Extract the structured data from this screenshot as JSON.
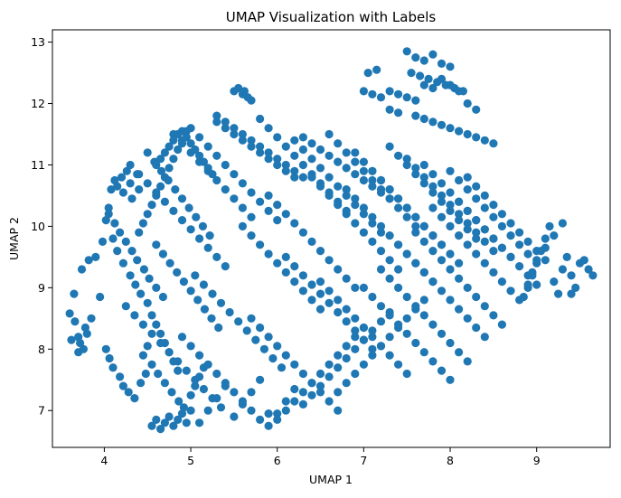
{
  "chart_data": {
    "type": "scatter",
    "title": "UMAP Visualization with Labels",
    "xlabel": "UMAP 1",
    "ylabel": "UMAP 2",
    "xlim": [
      3.4,
      9.85
    ],
    "ylim": [
      6.4,
      13.2
    ],
    "xticks": [
      4,
      5,
      6,
      7,
      8,
      9
    ],
    "yticks": [
      7,
      8,
      9,
      10,
      11,
      12,
      13
    ],
    "grid": false,
    "legend": "none",
    "series": [
      {
        "color": "#1f77b4",
        "x": [
          3.6,
          3.62,
          3.66,
          3.7,
          3.72,
          3.76,
          3.78,
          3.8,
          3.7,
          3.65,
          3.74,
          3.82,
          3.9,
          3.85,
          3.95,
          3.98,
          4.02,
          4.05,
          4.08,
          4.12,
          4.15,
          4.2,
          4.22,
          4.26,
          4.3,
          4.32,
          4.38,
          4.4,
          4.02,
          4.06,
          4.1,
          4.18,
          4.22,
          4.28,
          4.35,
          4.42,
          4.48,
          4.1,
          4.15,
          4.22,
          4.3,
          4.36,
          4.42,
          4.5,
          4.55,
          4.6,
          4.65,
          4.7,
          4.75,
          4.8,
          4.85,
          4.55,
          4.6,
          4.65,
          4.7,
          4.75,
          4.8,
          4.85,
          4.9,
          4.95,
          5.0,
          4.45,
          4.5,
          4.55,
          4.62,
          4.7,
          4.78,
          4.86,
          4.92,
          5.0,
          5.05,
          5.1,
          5.15,
          4.4,
          4.45,
          4.5,
          4.55,
          4.6,
          4.65,
          4.7,
          4.75,
          4.8,
          4.85,
          4.9,
          4.95,
          4.5,
          4.58,
          4.66,
          4.74,
          4.82,
          4.9,
          4.98,
          5.06,
          5.14,
          5.22,
          4.6,
          4.68,
          4.76,
          4.84,
          4.92,
          5.0,
          5.08,
          5.16,
          5.24,
          5.32,
          4.05,
          4.12,
          4.18,
          4.25,
          4.32,
          4.38,
          4.46,
          4.52,
          4.6,
          4.68,
          4.25,
          4.35,
          4.45,
          4.55,
          4.65,
          4.75,
          4.85,
          4.95,
          5.05,
          5.15,
          5.25,
          5.35,
          4.3,
          4.4,
          4.5,
          4.6,
          4.7,
          4.8,
          4.9,
          5.0,
          5.1,
          5.2,
          5.3,
          5.4,
          4.8,
          4.9,
          5.0,
          5.1,
          5.2,
          5.3,
          5.4,
          5.5,
          5.6,
          5.7,
          4.9,
          5.0,
          5.1,
          5.2,
          5.3,
          5.4,
          5.5,
          5.6,
          5.7,
          5.8,
          5.9,
          5.0,
          5.1,
          5.2,
          5.3,
          5.4,
          5.5,
          5.6,
          5.7,
          5.8,
          5.9,
          6.0,
          5.05,
          5.15,
          5.25,
          5.35,
          5.45,
          5.55,
          5.65,
          5.75,
          5.85,
          5.95,
          6.05,
          5.1,
          5.2,
          5.3,
          5.4,
          5.5,
          5.6,
          5.7,
          5.8,
          5.9,
          6.0,
          6.1,
          6.2,
          5.5,
          5.55,
          5.6,
          5.62,
          5.66,
          5.7,
          5.3,
          5.4,
          5.5,
          5.6,
          5.7,
          5.8,
          5.9,
          6.0,
          6.1,
          6.2,
          6.3,
          5.6,
          5.7,
          5.8,
          5.9,
          6.0,
          6.1,
          6.2,
          6.3,
          6.4,
          6.5,
          5.7,
          5.8,
          5.9,
          6.0,
          6.1,
          6.2,
          6.3,
          6.4,
          6.5,
          6.6,
          6.7,
          5.8,
          5.9,
          6.0,
          6.1,
          6.2,
          6.3,
          6.4,
          6.5,
          6.6,
          6.7,
          6.8,
          5.9,
          6.0,
          6.1,
          6.2,
          6.3,
          6.4,
          6.5,
          6.6,
          6.7,
          6.8,
          6.9,
          6.0,
          6.1,
          6.2,
          6.3,
          6.4,
          6.5,
          6.6,
          6.7,
          6.8,
          6.9,
          7.0,
          6.1,
          6.2,
          6.3,
          6.4,
          6.5,
          6.6,
          6.7,
          6.8,
          6.9,
          7.0,
          7.1,
          6.2,
          6.3,
          6.4,
          6.5,
          6.6,
          6.7,
          6.8,
          6.9,
          7.0,
          7.1,
          7.2,
          6.3,
          6.4,
          6.5,
          6.6,
          6.7,
          6.8,
          6.9,
          7.0,
          7.1,
          7.2,
          7.3,
          6.4,
          6.5,
          6.6,
          6.7,
          6.8,
          6.9,
          7.0,
          7.1,
          7.2,
          7.3,
          7.4,
          6.5,
          6.6,
          6.7,
          6.8,
          6.9,
          7.0,
          7.1,
          7.2,
          7.3,
          7.4,
          7.5,
          6.6,
          6.7,
          6.8,
          6.9,
          7.0,
          7.1,
          7.2,
          7.3,
          7.4,
          7.5,
          7.6,
          6.7,
          6.8,
          6.9,
          7.0,
          7.1,
          7.2,
          7.3,
          7.4,
          7.5,
          7.6,
          7.7,
          6.8,
          6.9,
          7.0,
          7.1,
          7.2,
          7.3,
          7.4,
          7.5,
          7.6,
          7.7,
          7.8,
          6.9,
          7.0,
          7.1,
          7.2,
          7.3,
          7.4,
          7.5,
          7.6,
          7.7,
          7.8,
          7.9,
          7.0,
          7.1,
          7.2,
          7.3,
          7.4,
          7.5,
          7.6,
          7.7,
          7.8,
          7.9,
          8.0,
          7.1,
          7.2,
          7.3,
          7.4,
          7.5,
          7.6,
          7.7,
          7.8,
          7.9,
          8.0,
          8.1,
          7.2,
          7.3,
          7.4,
          7.5,
          7.6,
          7.7,
          7.8,
          7.9,
          8.0,
          8.1,
          8.2,
          7.3,
          7.4,
          7.5,
          7.6,
          7.7,
          7.8,
          7.9,
          8.0,
          8.1,
          8.2,
          8.3,
          7.4,
          7.5,
          7.6,
          7.7,
          7.8,
          7.9,
          8.0,
          8.1,
          8.2,
          8.3,
          8.4,
          7.5,
          7.6,
          7.7,
          7.8,
          7.9,
          8.0,
          8.1,
          8.2,
          8.3,
          8.4,
          8.5,
          7.6,
          7.7,
          7.8,
          7.9,
          8.0,
          8.1,
          8.2,
          8.3,
          8.4,
          8.5,
          8.6,
          7.7,
          7.8,
          7.9,
          8.0,
          8.1,
          8.2,
          8.3,
          8.4,
          8.5,
          8.6,
          8.7,
          7.8,
          7.9,
          8.0,
          8.1,
          8.2,
          8.3,
          8.4,
          8.5,
          8.6,
          8.7,
          8.8,
          8.0,
          8.1,
          8.2,
          8.3,
          8.4,
          8.5,
          8.6,
          8.7,
          8.8,
          8.9,
          8.1,
          8.2,
          8.3,
          8.4,
          8.5,
          8.6,
          8.7,
          8.8,
          8.9,
          9.0,
          8.2,
          8.3,
          8.4,
          8.5,
          8.6,
          8.7,
          8.8,
          8.9,
          9.0,
          9.1,
          7.0,
          7.05,
          7.1,
          7.15,
          7.2,
          7.3,
          7.4,
          7.5,
          7.6,
          7.7,
          7.8,
          7.9,
          8.0,
          8.1,
          8.2,
          8.3,
          7.5,
          7.6,
          7.7,
          7.8,
          7.9,
          8.0,
          7.55,
          7.65,
          7.75,
          7.85,
          7.95,
          8.05,
          8.15,
          7.3,
          7.4,
          7.6,
          7.7,
          7.8,
          7.9,
          8.0,
          8.1,
          8.2,
          8.3,
          8.4,
          8.5,
          8.9,
          8.95,
          9.0,
          9.05,
          9.1,
          9.15,
          9.2,
          9.25,
          9.3,
          9.35,
          9.4,
          9.45,
          9.5,
          9.55,
          9.6,
          9.65,
          8.85,
          8.9,
          8.95,
          9.0,
          9.1,
          9.2,
          9.3,
          9.4,
          4.6,
          4.65,
          4.7,
          4.75,
          4.8,
          4.85,
          4.9,
          4.95,
          5.0,
          5.05,
          5.1,
          5.15,
          5.2,
          5.25,
          5.3,
          5.4,
          5.5,
          5.6,
          5.7,
          5.8,
          5.9,
          6.0,
          6.1,
          6.2,
          6.3,
          6.4,
          6.5,
          6.6,
          6.7,
          6.8,
          6.9,
          7.0,
          7.1,
          7.2,
          7.3
        ],
        "y": [
          8.58,
          8.15,
          8.45,
          8.2,
          8.1,
          8.0,
          8.35,
          8.25,
          7.95,
          8.9,
          9.3,
          9.45,
          9.5,
          8.5,
          8.85,
          9.75,
          10.1,
          10.3,
          10.6,
          10.75,
          10.65,
          10.8,
          10.55,
          10.9,
          10.7,
          10.45,
          10.85,
          10.6,
          8.0,
          7.85,
          7.7,
          7.55,
          7.4,
          7.3,
          7.2,
          7.45,
          7.6,
          9.8,
          9.6,
          9.4,
          9.2,
          9.05,
          8.9,
          8.75,
          8.55,
          8.4,
          8.25,
          8.1,
          7.95,
          7.8,
          7.65,
          6.75,
          6.85,
          6.7,
          6.8,
          6.9,
          6.75,
          6.85,
          6.95,
          6.8,
          7.0,
          7.9,
          8.05,
          7.75,
          7.6,
          7.45,
          7.3,
          7.15,
          7.05,
          7.25,
          7.4,
          7.55,
          7.7,
          9.9,
          10.05,
          10.2,
          10.35,
          10.5,
          10.65,
          10.8,
          10.95,
          11.1,
          11.25,
          11.4,
          11.55,
          11.2,
          11.05,
          10.9,
          10.75,
          10.6,
          10.45,
          10.3,
          10.15,
          10.0,
          9.85,
          9.7,
          9.55,
          9.4,
          9.25,
          9.1,
          8.95,
          8.8,
          8.65,
          8.5,
          8.35,
          10.2,
          10.05,
          9.9,
          9.75,
          9.6,
          9.45,
          9.3,
          9.15,
          9.0,
          8.85,
          8.7,
          8.55,
          8.4,
          8.25,
          8.1,
          7.95,
          7.8,
          7.65,
          7.5,
          7.35,
          7.2,
          7.05,
          11.0,
          10.85,
          10.7,
          10.55,
          10.4,
          10.25,
          10.1,
          9.95,
          9.8,
          9.65,
          9.5,
          9.35,
          11.5,
          11.35,
          11.2,
          11.05,
          10.9,
          10.75,
          10.6,
          10.45,
          10.3,
          10.15,
          8.2,
          8.05,
          7.9,
          7.75,
          7.6,
          7.45,
          7.3,
          7.15,
          7.0,
          6.85,
          6.95,
          11.6,
          11.45,
          11.3,
          11.15,
          11.0,
          10.85,
          10.7,
          10.55,
          10.4,
          10.25,
          10.1,
          9.2,
          9.05,
          8.9,
          8.75,
          8.6,
          8.45,
          8.3,
          8.15,
          8.0,
          7.85,
          7.7,
          6.8,
          7.0,
          7.2,
          7.4,
          6.9,
          7.1,
          7.3,
          7.5,
          6.75,
          6.95,
          7.15,
          7.35,
          12.2,
          12.25,
          12.15,
          12.2,
          12.1,
          12.05,
          11.8,
          11.7,
          11.6,
          11.5,
          11.4,
          11.3,
          11.2,
          11.1,
          11.0,
          10.9,
          10.8,
          10.0,
          9.85,
          9.7,
          9.55,
          9.4,
          9.25,
          9.1,
          8.95,
          8.8,
          8.65,
          8.5,
          8.35,
          8.2,
          8.05,
          7.9,
          7.75,
          7.6,
          7.45,
          7.3,
          7.15,
          7.0,
          11.75,
          11.6,
          11.45,
          11.3,
          11.15,
          11.0,
          10.85,
          10.7,
          10.55,
          10.4,
          10.25,
          10.5,
          10.35,
          10.2,
          10.05,
          9.9,
          9.75,
          9.6,
          9.45,
          9.3,
          9.15,
          9.0,
          6.85,
          7.0,
          7.15,
          7.3,
          7.45,
          7.6,
          7.75,
          7.9,
          8.05,
          8.2,
          8.35,
          9.5,
          9.35,
          9.2,
          9.05,
          8.9,
          8.75,
          8.6,
          8.45,
          8.3,
          8.15,
          8.0,
          11.4,
          11.25,
          11.1,
          10.95,
          10.8,
          10.65,
          10.5,
          10.35,
          10.2,
          10.05,
          9.9,
          7.1,
          7.25,
          7.4,
          7.55,
          7.7,
          7.85,
          8.0,
          8.15,
          8.3,
          8.45,
          8.6,
          10.8,
          10.65,
          10.5,
          10.35,
          10.2,
          10.05,
          9.9,
          9.75,
          9.6,
          9.45,
          9.3,
          9.1,
          8.95,
          8.8,
          8.65,
          8.5,
          8.35,
          8.2,
          8.05,
          7.9,
          7.75,
          7.6,
          11.5,
          11.35,
          11.2,
          11.05,
          10.9,
          10.75,
          10.6,
          10.45,
          10.3,
          10.15,
          10.0,
          7.3,
          7.45,
          7.6,
          7.75,
          7.9,
          8.05,
          8.2,
          8.35,
          8.5,
          8.65,
          8.8,
          10.6,
          10.45,
          10.3,
          10.15,
          10.0,
          9.85,
          9.7,
          9.55,
          9.4,
          9.25,
          9.1,
          11.2,
          11.05,
          10.9,
          10.75,
          10.6,
          10.45,
          10.3,
          10.15,
          10.0,
          9.85,
          9.7,
          9.0,
          8.85,
          8.7,
          8.55,
          8.4,
          8.25,
          8.1,
          7.95,
          7.8,
          7.65,
          7.5,
          10.9,
          10.75,
          10.6,
          10.45,
          10.3,
          10.15,
          10.0,
          9.85,
          9.7,
          9.55,
          9.4,
          9.3,
          9.15,
          9.0,
          8.85,
          8.7,
          8.55,
          8.4,
          8.25,
          8.1,
          7.95,
          7.8,
          11.3,
          11.15,
          11.0,
          10.85,
          10.7,
          10.55,
          10.4,
          10.25,
          10.1,
          9.95,
          9.8,
          9.7,
          9.55,
          9.4,
          9.25,
          9.1,
          8.95,
          8.8,
          8.65,
          8.5,
          8.35,
          8.2,
          11.1,
          10.95,
          10.8,
          10.65,
          10.5,
          10.35,
          10.2,
          10.05,
          9.9,
          9.75,
          9.6,
          9.9,
          9.75,
          9.6,
          9.45,
          9.3,
          9.15,
          9.0,
          8.85,
          8.7,
          8.55,
          8.4,
          11.0,
          10.85,
          10.7,
          10.55,
          10.4,
          10.25,
          10.1,
          9.95,
          9.8,
          9.65,
          9.5,
          10.3,
          10.15,
          10.0,
          9.85,
          9.7,
          9.55,
          9.4,
          9.25,
          9.1,
          8.95,
          8.8,
          10.9,
          10.75,
          10.6,
          10.45,
          10.3,
          10.15,
          10.0,
          9.85,
          9.7,
          9.55,
          10.4,
          10.25,
          10.1,
          9.95,
          9.8,
          9.65,
          9.5,
          9.35,
          9.2,
          9.05,
          10.8,
          10.65,
          10.5,
          10.35,
          10.2,
          10.05,
          9.9,
          9.75,
          9.6,
          9.45,
          12.2,
          12.5,
          12.15,
          12.55,
          12.1,
          12.2,
          12.15,
          12.1,
          12.05,
          12.3,
          12.25,
          12.4,
          12.3,
          12.2,
          12.0,
          11.9,
          12.85,
          12.75,
          12.7,
          12.8,
          12.65,
          12.6,
          12.5,
          12.45,
          12.4,
          12.35,
          12.3,
          12.25,
          12.2,
          11.9,
          11.85,
          11.8,
          11.75,
          11.7,
          11.65,
          11.6,
          11.55,
          11.5,
          11.45,
          11.4,
          11.35,
          9.0,
          9.2,
          9.4,
          9.6,
          9.8,
          10.0,
          9.1,
          8.9,
          9.3,
          9.5,
          9.2,
          9.0,
          9.4,
          9.45,
          9.3,
          9.2,
          8.85,
          9.05,
          9.25,
          9.45,
          9.65,
          9.85,
          10.05,
          8.9,
          11.0,
          11.1,
          11.2,
          11.3,
          11.4,
          11.5,
          11.55,
          11.45,
          11.35,
          11.25,
          11.15,
          11.05,
          10.95,
          10.85,
          11.7,
          11.6,
          11.5,
          11.4,
          11.3,
          11.2,
          11.1,
          11.0,
          10.9,
          10.8,
          11.45,
          11.35,
          11.25,
          11.15,
          11.05,
          10.95,
          10.85,
          10.75,
          10.65,
          10.55,
          10.45
        ]
      }
    ]
  }
}
